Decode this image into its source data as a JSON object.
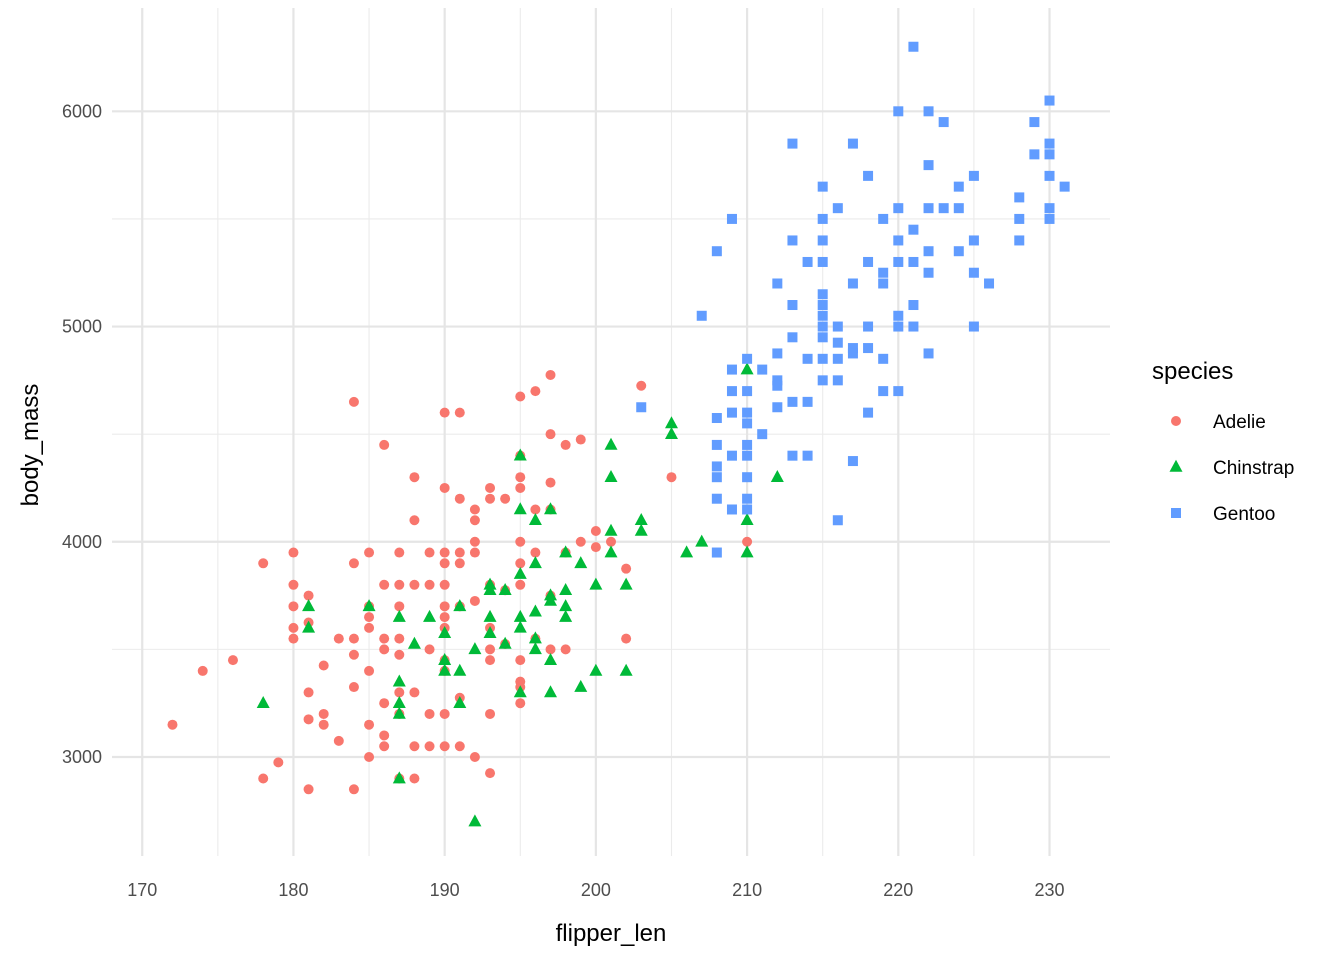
{
  "chart_data": {
    "type": "scatter",
    "xlabel": "flipper_len",
    "ylabel": "body_mass",
    "xlim": [
      168,
      234
    ],
    "ylim": [
      2540,
      6480
    ],
    "x_ticks": [
      170,
      180,
      190,
      200,
      210,
      220,
      230
    ],
    "x_tick_labels": [
      "170",
      "180",
      "190",
      "200",
      "210",
      "220",
      "230"
    ],
    "y_ticks": [
      3000,
      4000,
      5000,
      6000
    ],
    "y_tick_labels": [
      "3000",
      "4000",
      "5000",
      "6000"
    ],
    "grid": true,
    "legend": {
      "title": "species",
      "position": "right"
    },
    "series": [
      {
        "name": "Adelie",
        "color": "#F8766D",
        "shape": "circle",
        "points": [
          [
            172,
            3150
          ],
          [
            174,
            3400
          ],
          [
            176,
            3450
          ],
          [
            178,
            3900
          ],
          [
            178,
            2900
          ],
          [
            179,
            2975
          ],
          [
            180,
            3950
          ],
          [
            180,
            3800
          ],
          [
            180,
            3700
          ],
          [
            180,
            3600
          ],
          [
            180,
            3550
          ],
          [
            181,
            3750
          ],
          [
            181,
            3625
          ],
          [
            181,
            3300
          ],
          [
            181,
            3175
          ],
          [
            181,
            2850
          ],
          [
            182,
            3425
          ],
          [
            182,
            3200
          ],
          [
            182,
            3150
          ],
          [
            183,
            3550
          ],
          [
            183,
            3075
          ],
          [
            184,
            4650
          ],
          [
            184,
            3900
          ],
          [
            184,
            3550
          ],
          [
            184,
            3475
          ],
          [
            184,
            3325
          ],
          [
            184,
            2850
          ],
          [
            185,
            3950
          ],
          [
            185,
            3700
          ],
          [
            185,
            3650
          ],
          [
            185,
            3600
          ],
          [
            185,
            3400
          ],
          [
            185,
            3150
          ],
          [
            185,
            3000
          ],
          [
            186,
            4450
          ],
          [
            186,
            3800
          ],
          [
            186,
            3550
          ],
          [
            186,
            3500
          ],
          [
            186,
            3250
          ],
          [
            186,
            3100
          ],
          [
            186,
            3050
          ],
          [
            187,
            3950
          ],
          [
            187,
            3800
          ],
          [
            187,
            3700
          ],
          [
            187,
            3550
          ],
          [
            187,
            3475
          ],
          [
            187,
            3300
          ],
          [
            187,
            3200
          ],
          [
            187,
            2900
          ],
          [
            188,
            4300
          ],
          [
            188,
            4100
          ],
          [
            188,
            3800
          ],
          [
            188,
            3300
          ],
          [
            188,
            3050
          ],
          [
            188,
            2900
          ],
          [
            189,
            3950
          ],
          [
            189,
            3800
          ],
          [
            189,
            3500
          ],
          [
            189,
            3200
          ],
          [
            189,
            3050
          ],
          [
            190,
            4600
          ],
          [
            190,
            4250
          ],
          [
            190,
            3950
          ],
          [
            190,
            3900
          ],
          [
            190,
            3800
          ],
          [
            190,
            3700
          ],
          [
            190,
            3650
          ],
          [
            190,
            3600
          ],
          [
            190,
            3450
          ],
          [
            190,
            3400
          ],
          [
            190,
            3200
          ],
          [
            190,
            3050
          ],
          [
            191,
            4600
          ],
          [
            191,
            4200
          ],
          [
            191,
            3950
          ],
          [
            191,
            3900
          ],
          [
            191,
            3700
          ],
          [
            191,
            3275
          ],
          [
            191,
            3050
          ],
          [
            192,
            4150
          ],
          [
            192,
            4100
          ],
          [
            192,
            4000
          ],
          [
            192,
            3950
          ],
          [
            192,
            3725
          ],
          [
            192,
            3000
          ],
          [
            193,
            4250
          ],
          [
            193,
            4200
          ],
          [
            193,
            3800
          ],
          [
            193,
            3600
          ],
          [
            193,
            3500
          ],
          [
            193,
            3450
          ],
          [
            193,
            3200
          ],
          [
            193,
            2925
          ],
          [
            194,
            4200
          ],
          [
            194,
            3775
          ],
          [
            194,
            3525
          ],
          [
            195,
            4675
          ],
          [
            195,
            4400
          ],
          [
            195,
            4300
          ],
          [
            195,
            4250
          ],
          [
            195,
            4000
          ],
          [
            195,
            3900
          ],
          [
            195,
            3800
          ],
          [
            195,
            3450
          ],
          [
            195,
            3350
          ],
          [
            195,
            3325
          ],
          [
            195,
            3250
          ],
          [
            196,
            4700
          ],
          [
            196,
            4150
          ],
          [
            196,
            3950
          ],
          [
            196,
            3550
          ],
          [
            197,
            4775
          ],
          [
            197,
            4500
          ],
          [
            197,
            4275
          ],
          [
            197,
            4150
          ],
          [
            197,
            3750
          ],
          [
            197,
            3500
          ],
          [
            198,
            4450
          ],
          [
            198,
            3950
          ],
          [
            198,
            3500
          ],
          [
            199,
            4475
          ],
          [
            199,
            4000
          ],
          [
            200,
            4050
          ],
          [
            200,
            3975
          ],
          [
            201,
            4000
          ],
          [
            202,
            3875
          ],
          [
            202,
            3550
          ],
          [
            203,
            4725
          ],
          [
            205,
            4300
          ],
          [
            210,
            4000
          ]
        ]
      },
      {
        "name": "Chinstrap",
        "color": "#00BA38",
        "shape": "triangle",
        "points": [
          [
            178,
            3250
          ],
          [
            181,
            3700
          ],
          [
            181,
            3600
          ],
          [
            185,
            3700
          ],
          [
            187,
            3650
          ],
          [
            187,
            3350
          ],
          [
            187,
            3250
          ],
          [
            187,
            3200
          ],
          [
            187,
            2900
          ],
          [
            188,
            3525
          ],
          [
            189,
            3650
          ],
          [
            190,
            3575
          ],
          [
            190,
            3450
          ],
          [
            190,
            3400
          ],
          [
            191,
            3700
          ],
          [
            191,
            3400
          ],
          [
            191,
            3250
          ],
          [
            192,
            3500
          ],
          [
            192,
            2700
          ],
          [
            193,
            3800
          ],
          [
            193,
            3650
          ],
          [
            193,
            3575
          ],
          [
            193,
            3775
          ],
          [
            194,
            3775
          ],
          [
            194,
            3525
          ],
          [
            195,
            4400
          ],
          [
            195,
            4150
          ],
          [
            195,
            3850
          ],
          [
            195,
            3650
          ],
          [
            195,
            3600
          ],
          [
            195,
            3300
          ],
          [
            196,
            4100
          ],
          [
            196,
            3900
          ],
          [
            196,
            3675
          ],
          [
            196,
            3550
          ],
          [
            196,
            3500
          ],
          [
            197,
            4150
          ],
          [
            197,
            3750
          ],
          [
            197,
            3725
          ],
          [
            197,
            3450
          ],
          [
            197,
            3300
          ],
          [
            198,
            3950
          ],
          [
            198,
            3775
          ],
          [
            198,
            3700
          ],
          [
            198,
            3650
          ],
          [
            199,
            3900
          ],
          [
            199,
            3325
          ],
          [
            200,
            3800
          ],
          [
            200,
            3400
          ],
          [
            201,
            4450
          ],
          [
            201,
            4300
          ],
          [
            201,
            4050
          ],
          [
            201,
            3950
          ],
          [
            202,
            3800
          ],
          [
            202,
            3400
          ],
          [
            203,
            4100
          ],
          [
            203,
            4050
          ],
          [
            205,
            4550
          ],
          [
            205,
            4500
          ],
          [
            206,
            3950
          ],
          [
            207,
            4000
          ],
          [
            210,
            4800
          ],
          [
            210,
            4100
          ],
          [
            210,
            3950
          ],
          [
            212,
            4300
          ]
        ]
      },
      {
        "name": "Gentoo",
        "color": "#619CFF",
        "shape": "square",
        "points": [
          [
            203,
            4625
          ],
          [
            207,
            5050
          ],
          [
            208,
            5350
          ],
          [
            208,
            4575
          ],
          [
            208,
            4450
          ],
          [
            208,
            4350
          ],
          [
            208,
            4300
          ],
          [
            208,
            4200
          ],
          [
            208,
            3950
          ],
          [
            209,
            5500
          ],
          [
            209,
            4800
          ],
          [
            209,
            4700
          ],
          [
            209,
            4600
          ],
          [
            209,
            4400
          ],
          [
            209,
            4150
          ],
          [
            210,
            4850
          ],
          [
            210,
            4700
          ],
          [
            210,
            4600
          ],
          [
            210,
            4550
          ],
          [
            210,
            4450
          ],
          [
            210,
            4400
          ],
          [
            210,
            4300
          ],
          [
            210,
            4200
          ],
          [
            210,
            4150
          ],
          [
            211,
            4800
          ],
          [
            211,
            4500
          ],
          [
            212,
            5200
          ],
          [
            212,
            4875
          ],
          [
            212,
            4750
          ],
          [
            212,
            4725
          ],
          [
            212,
            4625
          ],
          [
            213,
            5850
          ],
          [
            213,
            5400
          ],
          [
            213,
            5100
          ],
          [
            213,
            4950
          ],
          [
            213,
            4650
          ],
          [
            213,
            4400
          ],
          [
            214,
            5300
          ],
          [
            214,
            4850
          ],
          [
            214,
            4650
          ],
          [
            214,
            4400
          ],
          [
            215,
            5650
          ],
          [
            215,
            5500
          ],
          [
            215,
            5400
          ],
          [
            215,
            5300
          ],
          [
            215,
            5150
          ],
          [
            215,
            5100
          ],
          [
            215,
            5050
          ],
          [
            215,
            5000
          ],
          [
            215,
            4950
          ],
          [
            215,
            4850
          ],
          [
            215,
            4750
          ],
          [
            216,
            5550
          ],
          [
            216,
            5000
          ],
          [
            216,
            4925
          ],
          [
            216,
            4850
          ],
          [
            216,
            4750
          ],
          [
            216,
            4100
          ],
          [
            217,
            5850
          ],
          [
            217,
            5200
          ],
          [
            217,
            4900
          ],
          [
            217,
            4875
          ],
          [
            217,
            4375
          ],
          [
            218,
            5700
          ],
          [
            218,
            5300
          ],
          [
            218,
            5000
          ],
          [
            218,
            4900
          ],
          [
            218,
            4600
          ],
          [
            219,
            5500
          ],
          [
            219,
            5250
          ],
          [
            219,
            5200
          ],
          [
            219,
            4850
          ],
          [
            219,
            4700
          ],
          [
            220,
            6000
          ],
          [
            220,
            5550
          ],
          [
            220,
            5400
          ],
          [
            220,
            5300
          ],
          [
            220,
            5050
          ],
          [
            220,
            5000
          ],
          [
            220,
            4700
          ],
          [
            221,
            6300
          ],
          [
            221,
            5450
          ],
          [
            221,
            5300
          ],
          [
            221,
            5100
          ],
          [
            221,
            5000
          ],
          [
            222,
            6000
          ],
          [
            222,
            5750
          ],
          [
            222,
            5550
          ],
          [
            222,
            5350
          ],
          [
            222,
            5250
          ],
          [
            222,
            4875
          ],
          [
            223,
            5950
          ],
          [
            223,
            5550
          ],
          [
            224,
            5650
          ],
          [
            224,
            5550
          ],
          [
            224,
            5350
          ],
          [
            225,
            5700
          ],
          [
            225,
            5400
          ],
          [
            225,
            5250
          ],
          [
            225,
            5000
          ],
          [
            226,
            5200
          ],
          [
            228,
            5600
          ],
          [
            228,
            5500
          ],
          [
            228,
            5400
          ],
          [
            229,
            5950
          ],
          [
            229,
            5800
          ],
          [
            230,
            6050
          ],
          [
            230,
            5850
          ],
          [
            230,
            5800
          ],
          [
            230,
            5700
          ],
          [
            230,
            5550
          ],
          [
            230,
            5500
          ],
          [
            231,
            5650
          ]
        ]
      }
    ]
  }
}
